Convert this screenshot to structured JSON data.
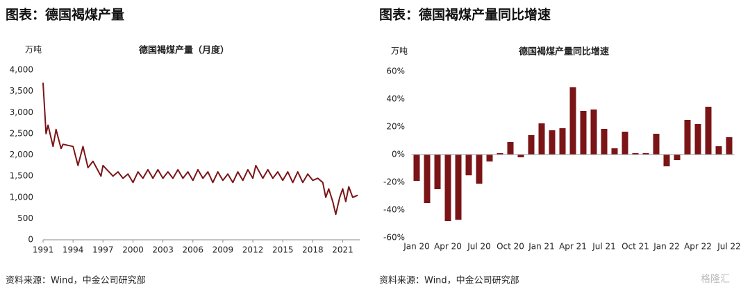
{
  "chart_data": [
    {
      "type": "line",
      "header": "图表：德国褐煤产量",
      "title": "德国褐煤产量（月度）",
      "unit": "万吨",
      "source": "资料来源：Wind，中金公司研究部",
      "color": "#7b1416",
      "x": [
        1991.0,
        1991.3,
        1991.5,
        1992.0,
        1992.3,
        1992.8,
        1993.0,
        1994.0,
        1994.5,
        1995.0,
        1995.5,
        1996.0,
        1996.8,
        1997.0,
        1998.0,
        1998.5,
        1999.0,
        1999.5,
        2000.0,
        2000.5,
        2001.0,
        2001.5,
        2002.0,
        2002.5,
        2003.0,
        2003.5,
        2004.0,
        2004.5,
        2005.0,
        2005.5,
        2006.0,
        2006.5,
        2007.0,
        2007.5,
        2008.0,
        2008.5,
        2009.0,
        2009.5,
        2010.0,
        2010.5,
        2011.0,
        2011.5,
        2012.0,
        2012.3,
        2013.0,
        2013.5,
        2014.0,
        2014.5,
        2015.0,
        2015.5,
        2016.0,
        2016.5,
        2017.0,
        2017.5,
        2018.0,
        2018.5,
        2019.0,
        2019.3,
        2019.6,
        2020.0,
        2020.3,
        2020.7,
        2021.0,
        2021.3,
        2021.6,
        2022.0,
        2022.5
      ],
      "values": [
        3700,
        2500,
        2700,
        2200,
        2600,
        2150,
        2250,
        2200,
        1750,
        2200,
        1700,
        1850,
        1500,
        1750,
        1500,
        1600,
        1450,
        1550,
        1350,
        1600,
        1450,
        1650,
        1450,
        1650,
        1450,
        1600,
        1450,
        1650,
        1450,
        1600,
        1400,
        1650,
        1450,
        1600,
        1350,
        1600,
        1400,
        1550,
        1350,
        1600,
        1400,
        1650,
        1450,
        1750,
        1450,
        1650,
        1450,
        1600,
        1400,
        1600,
        1350,
        1600,
        1350,
        1550,
        1400,
        1450,
        1350,
        1000,
        1200,
        900,
        600,
        1000,
        1200,
        900,
        1250,
        1000,
        1050
      ],
      "xlim": [
        1991,
        2022.7
      ],
      "xticks": [
        1991,
        1994,
        1997,
        2000,
        2003,
        2006,
        2009,
        2012,
        2015,
        2018,
        2021
      ],
      "ylim": [
        0,
        4000
      ],
      "yticks": [
        0,
        500,
        {
          "value": 1000,
          "label": "1,000"
        },
        {
          "value": 1500,
          "label": "1,500"
        },
        {
          "value": 2000,
          "label": "2,000"
        },
        {
          "value": 2500,
          "label": "2,500"
        },
        {
          "value": 3000,
          "label": "3,000"
        },
        {
          "value": 3500,
          "label": "3,500"
        },
        {
          "value": 4000,
          "label": "4,000"
        }
      ]
    },
    {
      "type": "bar",
      "header": "图表：德国褐煤产量同比增速",
      "title": "德国褐煤产量同比增速",
      "unit": "万吨",
      "source": "资料来源：Wind，中金公司研究部",
      "color": "#7b1416",
      "categories": [
        "Jan 20",
        null,
        null,
        "Apr 20",
        null,
        null,
        "Jul 20",
        null,
        null,
        "Oct 20",
        null,
        null,
        "Jan 21",
        null,
        null,
        "Apr 21",
        null,
        null,
        "Jul 21",
        null,
        null,
        "Oct 21",
        null,
        null,
        "Jan 22",
        null,
        null,
        "Apr 22",
        null,
        null,
        "Jul 22"
      ],
      "values": [
        -19,
        -35,
        -25,
        -48,
        -47,
        -15,
        -21,
        -5,
        1,
        9,
        -2,
        14,
        22.5,
        17.5,
        19,
        48.5,
        31.5,
        32.5,
        18.5,
        4.5,
        16.5,
        1,
        1,
        15,
        -8.5,
        -4,
        25,
        22,
        34.5,
        6,
        12.5
      ],
      "ylim": [
        -60,
        60
      ],
      "yticks": [
        {
          "value": -60,
          "label": "-60%"
        },
        {
          "value": -40,
          "label": "-40%"
        },
        {
          "value": -20,
          "label": "-20%"
        },
        {
          "value": 0,
          "label": "0%"
        },
        {
          "value": 20,
          "label": "20%"
        },
        {
          "value": 40,
          "label": "40%"
        },
        {
          "value": 60,
          "label": "60%"
        }
      ]
    }
  ],
  "watermark": "格隆汇"
}
